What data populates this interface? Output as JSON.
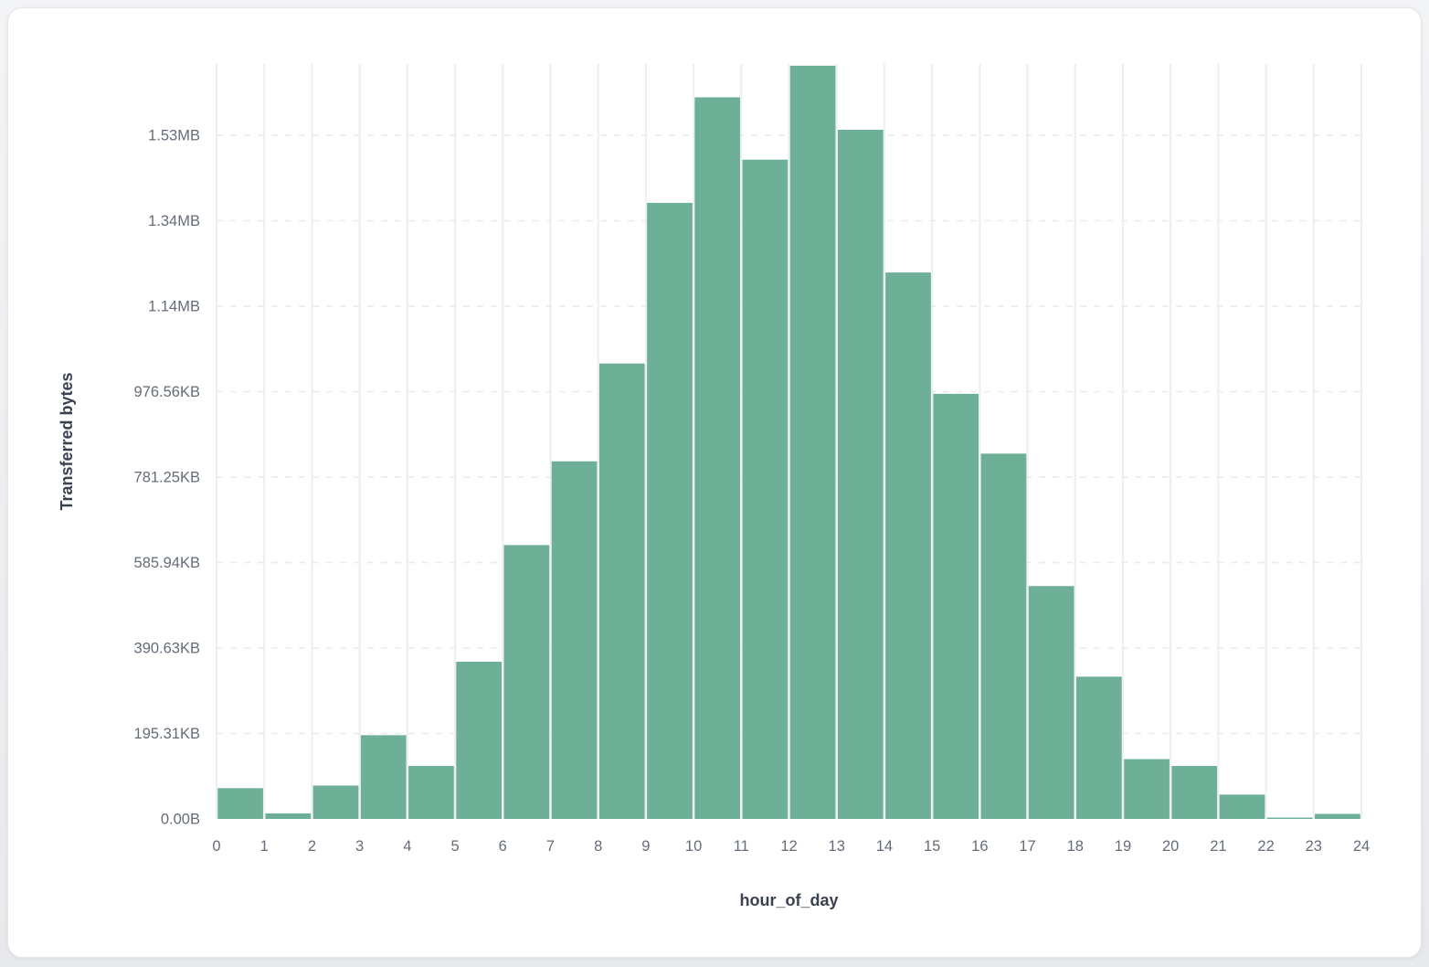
{
  "card": {
    "background": "#ffffff",
    "border_color": "#e4e6ea"
  },
  "chart_data": {
    "type": "bar",
    "title": "",
    "xlabel": "hour_of_day",
    "ylabel": "Transferred bytes",
    "values_unit": "bytes",
    "categories": [
      0,
      1,
      2,
      3,
      4,
      5,
      6,
      7,
      8,
      9,
      10,
      11,
      12,
      13,
      14,
      15,
      16,
      17,
      18,
      19,
      20,
      21,
      22,
      23
    ],
    "values": [
      72000,
      13000,
      78000,
      196000,
      124000,
      368000,
      641000,
      837000,
      1066000,
      1442000,
      1689000,
      1543000,
      1763000,
      1613000,
      1279000,
      995000,
      855000,
      545000,
      333000,
      140000,
      124000,
      57000,
      3200,
      11800
    ],
    "x_ticks": [
      "0",
      "1",
      "2",
      "3",
      "4",
      "5",
      "6",
      "7",
      "8",
      "9",
      "10",
      "11",
      "12",
      "13",
      "14",
      "15",
      "16",
      "17",
      "18",
      "19",
      "20",
      "21",
      "22",
      "23",
      "24"
    ],
    "y_ticks": [
      {
        "value": 0,
        "label": "0.00B"
      },
      {
        "value": 200000,
        "label": "195.31KB"
      },
      {
        "value": 400000,
        "label": "390.63KB"
      },
      {
        "value": 600000,
        "label": "585.94KB"
      },
      {
        "value": 800000,
        "label": "781.25KB"
      },
      {
        "value": 1000000,
        "label": "976.56KB"
      },
      {
        "value": 1200000,
        "label": "1.14MB"
      },
      {
        "value": 1400000,
        "label": "1.34MB"
      },
      {
        "value": 1600000,
        "label": "1.53MB"
      }
    ],
    "xlim": [
      0,
      24
    ],
    "ylim": [
      0,
      1767000
    ],
    "grid": "on",
    "legend": "none",
    "colors": {
      "bar": "#6EAF97",
      "v_grid": "#eceef3",
      "h_grid": "#e8ebf0",
      "tick_label": "#656c79",
      "axis_label": "#3a4150"
    }
  }
}
